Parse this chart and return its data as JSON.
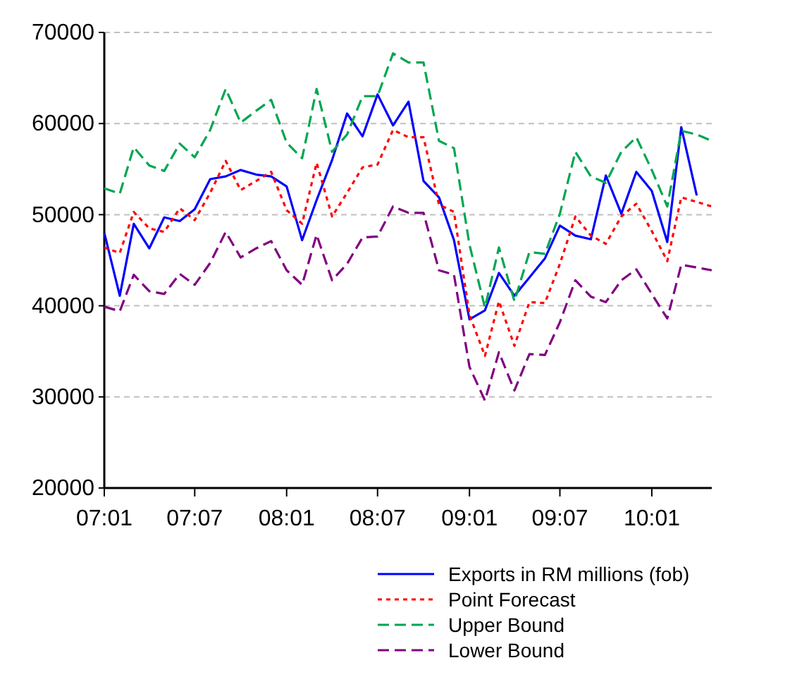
{
  "chart_data": {
    "type": "line",
    "x": [
      "2007-01",
      "2007-02",
      "2007-03",
      "2007-04",
      "2007-05",
      "2007-06",
      "2007-07",
      "2007-08",
      "2007-09",
      "2007-10",
      "2007-11",
      "2007-12",
      "2008-01",
      "2008-02",
      "2008-03",
      "2008-04",
      "2008-05",
      "2008-06",
      "2008-07",
      "2008-08",
      "2008-09",
      "2008-10",
      "2008-11",
      "2008-12",
      "2009-01",
      "2009-02",
      "2009-03",
      "2009-04",
      "2009-05",
      "2009-06",
      "2009-07",
      "2009-08",
      "2009-09",
      "2009-10",
      "2009-11",
      "2009-12",
      "2010-01",
      "2010-02",
      "2010-03",
      "2010-04",
      "2010-05"
    ],
    "series": [
      {
        "name": "Exports in RM millions (fob)",
        "color": "#0000ff",
        "line_style": "solid",
        "values": [
          48000,
          41100,
          49000,
          46300,
          49700,
          49300,
          50600,
          53900,
          54200,
          54900,
          54400,
          54200,
          53100,
          47200,
          51600,
          56000,
          61100,
          58600,
          63200,
          59800,
          62400,
          53700,
          51900,
          47200,
          38500,
          39500,
          43600,
          41100,
          43100,
          45200,
          48800,
          47700,
          47300,
          54300,
          50100,
          54700,
          52600,
          47000,
          59600,
          52100,
          null
        ]
      },
      {
        "name": "Point Forecast",
        "color": "#ff0000",
        "line_style": "dotted",
        "values": [
          46400,
          45800,
          50300,
          48500,
          48100,
          50700,
          49400,
          52400,
          55900,
          52700,
          53700,
          54700,
          50500,
          49000,
          55700,
          49800,
          52400,
          55200,
          55500,
          59300,
          58500,
          58500,
          51100,
          50300,
          39000,
          34500,
          40500,
          35600,
          40400,
          40300,
          44600,
          49800,
          47700,
          46800,
          49800,
          51200,
          48200,
          44900,
          51900,
          51400,
          50900
        ]
      },
      {
        "name": "Upper Bound",
        "color": "#00a651",
        "line_style": "dashed",
        "values": [
          52900,
          52300,
          57400,
          55400,
          54800,
          57800,
          56300,
          59300,
          63800,
          60100,
          61400,
          62600,
          57900,
          56200,
          63800,
          56900,
          58800,
          63000,
          63000,
          67700,
          66700,
          66700,
          58100,
          57300,
          46700,
          39800,
          46400,
          40500,
          45900,
          45700,
          50100,
          56900,
          54200,
          53500,
          56900,
          58500,
          54900,
          50900,
          59200,
          58800,
          58100
        ]
      },
      {
        "name": "Lower Bound",
        "color": "#800080",
        "line_style": "dashed",
        "values": [
          39900,
          39400,
          43400,
          41600,
          41300,
          43500,
          42300,
          44700,
          48100,
          45300,
          46300,
          47100,
          43900,
          42300,
          47800,
          42800,
          44600,
          47500,
          47600,
          50900,
          50200,
          50200,
          43900,
          43400,
          33300,
          29600,
          34900,
          30700,
          34700,
          34600,
          38200,
          42800,
          41000,
          40400,
          42800,
          44000,
          41300,
          38600,
          44500,
          44200,
          43900
        ]
      }
    ],
    "xlim": [
      "2007-01",
      "2010-05"
    ],
    "xticks": [
      {
        "value": "2007-01",
        "label": "07:01"
      },
      {
        "value": "2007-07",
        "label": "07:07"
      },
      {
        "value": "2008-01",
        "label": "08:01"
      },
      {
        "value": "2008-07",
        "label": "08:07"
      },
      {
        "value": "2009-01",
        "label": "09:01"
      },
      {
        "value": "2009-07",
        "label": "09:07"
      },
      {
        "value": "2010-01",
        "label": "10:01"
      }
    ],
    "ylim": [
      20000,
      70000
    ],
    "yticks": [
      20000,
      30000,
      40000,
      50000,
      60000,
      70000
    ],
    "grid": "y",
    "legend": "bottom"
  }
}
